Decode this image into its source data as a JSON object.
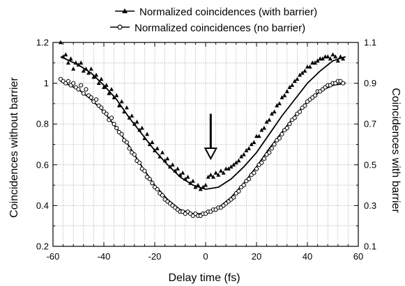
{
  "chart_data": {
    "type": "scatter",
    "xlabel": "Delay time (fs)",
    "ylabel_left": "Coincidences without barrier",
    "ylabel_right": "Coincidences with barrier",
    "xlim": [
      -60,
      60
    ],
    "ylim_left": [
      0.2,
      1.2
    ],
    "ylim_right": [
      0.1,
      1.1
    ],
    "x_ticks": [
      "-60",
      "-40",
      "-20",
      "0",
      "20",
      "40",
      "60"
    ],
    "y_ticks_left": [
      "0.2",
      "0.4",
      "0.6",
      "0.8",
      "1",
      "1.2"
    ],
    "y_ticks_right": [
      "0.1",
      "0.3",
      "0.5",
      "0.7",
      "0.9",
      "1.1"
    ],
    "grid": true,
    "legend_position": "top",
    "annotation": {
      "type": "arrow",
      "x": 2,
      "y_from_left_axis": 0.85,
      "y_to_left_axis": 0.63
    },
    "series": [
      {
        "name": "Normalized coincidences (with barrier)",
        "axis": "right",
        "marker": "filled-triangle",
        "points": [
          [
            -57,
            1.1
          ],
          [
            -56,
            1.03
          ],
          [
            -55,
            1.04
          ],
          [
            -54,
            1.0
          ],
          [
            -53,
            1.02
          ],
          [
            -52,
            0.97
          ],
          [
            -51,
            1.0
          ],
          [
            -50,
            0.99
          ],
          [
            -49,
            1.0
          ],
          [
            -48,
            0.96
          ],
          [
            -47,
            0.97
          ],
          [
            -46,
            0.95
          ],
          [
            -45,
            0.97
          ],
          [
            -44,
            0.93
          ],
          [
            -43,
            0.94
          ],
          [
            -42,
            0.9
          ],
          [
            -41,
            0.92
          ],
          [
            -40,
            0.88
          ],
          [
            -39,
            0.89
          ],
          [
            -38,
            0.85
          ],
          [
            -37,
            0.87
          ],
          [
            -36,
            0.83
          ],
          [
            -35,
            0.84
          ],
          [
            -34,
            0.79
          ],
          [
            -33,
            0.81
          ],
          [
            -32,
            0.76
          ],
          [
            -31,
            0.78
          ],
          [
            -30,
            0.73
          ],
          [
            -29,
            0.74
          ],
          [
            -28,
            0.7
          ],
          [
            -27,
            0.71
          ],
          [
            -26,
            0.67
          ],
          [
            -25,
            0.68
          ],
          [
            -24,
            0.63
          ],
          [
            -23,
            0.65
          ],
          [
            -22,
            0.6
          ],
          [
            -21,
            0.61
          ],
          [
            -20,
            0.57
          ],
          [
            -19,
            0.58
          ],
          [
            -18,
            0.54
          ],
          [
            -17,
            0.56
          ],
          [
            -16,
            0.52
          ],
          [
            -15,
            0.53
          ],
          [
            -14,
            0.49
          ],
          [
            -13,
            0.5
          ],
          [
            -12,
            0.47
          ],
          [
            -11,
            0.48
          ],
          [
            -10,
            0.45
          ],
          [
            -9,
            0.46
          ],
          [
            -8,
            0.43
          ],
          [
            -7,
            0.44
          ],
          [
            -6,
            0.41
          ],
          [
            -5,
            0.42
          ],
          [
            -4,
            0.39
          ],
          [
            -3,
            0.4
          ],
          [
            -2,
            0.38
          ],
          [
            -1,
            0.39
          ],
          [
            0,
            0.4
          ],
          [
            1,
            0.44
          ],
          [
            2,
            0.45
          ],
          [
            3,
            0.44
          ],
          [
            4,
            0.46
          ],
          [
            5,
            0.45
          ],
          [
            6,
            0.47
          ],
          [
            7,
            0.46
          ],
          [
            8,
            0.48
          ],
          [
            9,
            0.48
          ],
          [
            10,
            0.49
          ],
          [
            11,
            0.5
          ],
          [
            12,
            0.51
          ],
          [
            13,
            0.52
          ],
          [
            14,
            0.54
          ],
          [
            15,
            0.55
          ],
          [
            16,
            0.57
          ],
          [
            17,
            0.58
          ],
          [
            18,
            0.6
          ],
          [
            19,
            0.61
          ],
          [
            20,
            0.64
          ],
          [
            21,
            0.64
          ],
          [
            22,
            0.67
          ],
          [
            23,
            0.68
          ],
          [
            24,
            0.71
          ],
          [
            25,
            0.72
          ],
          [
            26,
            0.75
          ],
          [
            27,
            0.76
          ],
          [
            28,
            0.79
          ],
          [
            29,
            0.8
          ],
          [
            30,
            0.83
          ],
          [
            31,
            0.84
          ],
          [
            32,
            0.86
          ],
          [
            33,
            0.88
          ],
          [
            34,
            0.89
          ],
          [
            35,
            0.91
          ],
          [
            36,
            0.92
          ],
          [
            37,
            0.94
          ],
          [
            38,
            0.95
          ],
          [
            39,
            0.96
          ],
          [
            40,
            0.98
          ],
          [
            41,
            0.98
          ],
          [
            42,
            1.0
          ],
          [
            43,
            1.0
          ],
          [
            44,
            1.01
          ],
          [
            45,
            1.02
          ],
          [
            46,
            1.02
          ],
          [
            47,
            1.03
          ],
          [
            48,
            1.03
          ],
          [
            49,
            1.02
          ],
          [
            50,
            1.04
          ],
          [
            51,
            1.03
          ],
          [
            52,
            1.01
          ],
          [
            53,
            1.03
          ],
          [
            54,
            1.02
          ]
        ],
        "fit": [
          [
            -57,
            1.03
          ],
          [
            -50,
            0.99
          ],
          [
            -45,
            0.95
          ],
          [
            -40,
            0.89
          ],
          [
            -35,
            0.82
          ],
          [
            -30,
            0.73
          ],
          [
            -25,
            0.65
          ],
          [
            -20,
            0.57
          ],
          [
            -15,
            0.5
          ],
          [
            -10,
            0.44
          ],
          [
            -5,
            0.4
          ],
          [
            0,
            0.38
          ],
          [
            5,
            0.39
          ],
          [
            10,
            0.43
          ],
          [
            15,
            0.49
          ],
          [
            20,
            0.56
          ],
          [
            25,
            0.65
          ],
          [
            30,
            0.74
          ],
          [
            35,
            0.82
          ],
          [
            40,
            0.9
          ],
          [
            45,
            0.96
          ],
          [
            50,
            1.01
          ],
          [
            55,
            1.03
          ]
        ]
      },
      {
        "name": "Normalized coincidences (no barrier)",
        "axis": "left",
        "marker": "open-circle",
        "points": [
          [
            -57,
            1.02
          ],
          [
            -56,
            1.01
          ],
          [
            -55,
            1.0
          ],
          [
            -54,
            1.01
          ],
          [
            -53,
            0.99
          ],
          [
            -52,
            1.0
          ],
          [
            -51,
            0.98
          ],
          [
            -50,
            0.97
          ],
          [
            -49,
            0.99
          ],
          [
            -48,
            0.95
          ],
          [
            -47,
            0.97
          ],
          [
            -46,
            0.94
          ],
          [
            -45,
            0.93
          ],
          [
            -44,
            0.91
          ],
          [
            -43,
            0.92
          ],
          [
            -42,
            0.89
          ],
          [
            -41,
            0.88
          ],
          [
            -40,
            0.86
          ],
          [
            -39,
            0.85
          ],
          [
            -38,
            0.82
          ],
          [
            -37,
            0.83
          ],
          [
            -36,
            0.8
          ],
          [
            -35,
            0.78
          ],
          [
            -34,
            0.76
          ],
          [
            -33,
            0.75
          ],
          [
            -32,
            0.72
          ],
          [
            -31,
            0.71
          ],
          [
            -30,
            0.68
          ],
          [
            -29,
            0.66
          ],
          [
            -28,
            0.65
          ],
          [
            -27,
            0.62
          ],
          [
            -26,
            0.61
          ],
          [
            -25,
            0.58
          ],
          [
            -24,
            0.57
          ],
          [
            -23,
            0.54
          ],
          [
            -22,
            0.53
          ],
          [
            -21,
            0.51
          ],
          [
            -20,
            0.49
          ],
          [
            -19,
            0.48
          ],
          [
            -18,
            0.46
          ],
          [
            -17,
            0.45
          ],
          [
            -16,
            0.43
          ],
          [
            -15,
            0.42
          ],
          [
            -14,
            0.41
          ],
          [
            -13,
            0.4
          ],
          [
            -12,
            0.39
          ],
          [
            -11,
            0.38
          ],
          [
            -10,
            0.37
          ],
          [
            -9,
            0.37
          ],
          [
            -8,
            0.36
          ],
          [
            -7,
            0.37
          ],
          [
            -6,
            0.36
          ],
          [
            -5,
            0.35
          ],
          [
            -4,
            0.36
          ],
          [
            -3,
            0.35
          ],
          [
            -2,
            0.35
          ],
          [
            -1,
            0.36
          ],
          [
            0,
            0.36
          ],
          [
            1,
            0.37
          ],
          [
            2,
            0.37
          ],
          [
            3,
            0.38
          ],
          [
            4,
            0.38
          ],
          [
            5,
            0.39
          ],
          [
            6,
            0.39
          ],
          [
            7,
            0.4
          ],
          [
            8,
            0.41
          ],
          [
            9,
            0.42
          ],
          [
            10,
            0.43
          ],
          [
            11,
            0.44
          ],
          [
            12,
            0.46
          ],
          [
            13,
            0.47
          ],
          [
            14,
            0.49
          ],
          [
            15,
            0.5
          ],
          [
            16,
            0.52
          ],
          [
            17,
            0.53
          ],
          [
            18,
            0.55
          ],
          [
            19,
            0.56
          ],
          [
            20,
            0.58
          ],
          [
            21,
            0.6
          ],
          [
            22,
            0.61
          ],
          [
            23,
            0.63
          ],
          [
            24,
            0.65
          ],
          [
            25,
            0.66
          ],
          [
            26,
            0.68
          ],
          [
            27,
            0.7
          ],
          [
            28,
            0.72
          ],
          [
            29,
            0.73
          ],
          [
            30,
            0.75
          ],
          [
            31,
            0.77
          ],
          [
            32,
            0.78
          ],
          [
            33,
            0.8
          ],
          [
            34,
            0.82
          ],
          [
            35,
            0.83
          ],
          [
            36,
            0.85
          ],
          [
            37,
            0.86
          ],
          [
            38,
            0.88
          ],
          [
            39,
            0.89
          ],
          [
            40,
            0.91
          ],
          [
            41,
            0.92
          ],
          [
            42,
            0.93
          ],
          [
            43,
            0.94
          ],
          [
            44,
            0.96
          ],
          [
            45,
            0.96
          ],
          [
            46,
            0.97
          ],
          [
            47,
            0.98
          ],
          [
            48,
            0.99
          ],
          [
            49,
            0.99
          ],
          [
            50,
            1.0
          ],
          [
            51,
            1.0
          ],
          [
            52,
            1.01
          ],
          [
            53,
            1.01
          ],
          [
            54,
            1.0
          ]
        ],
        "fit": [
          [
            -57,
            1.01
          ],
          [
            -50,
            0.97
          ],
          [
            -45,
            0.92
          ],
          [
            -40,
            0.86
          ],
          [
            -35,
            0.78
          ],
          [
            -30,
            0.69
          ],
          [
            -25,
            0.59
          ],
          [
            -20,
            0.5
          ],
          [
            -15,
            0.43
          ],
          [
            -10,
            0.38
          ],
          [
            -5,
            0.36
          ],
          [
            0,
            0.36
          ],
          [
            5,
            0.39
          ],
          [
            10,
            0.44
          ],
          [
            15,
            0.51
          ],
          [
            20,
            0.59
          ],
          [
            25,
            0.68
          ],
          [
            30,
            0.76
          ],
          [
            35,
            0.84
          ],
          [
            40,
            0.91
          ],
          [
            45,
            0.96
          ],
          [
            50,
            0.99
          ],
          [
            55,
            1.0
          ]
        ]
      }
    ]
  }
}
